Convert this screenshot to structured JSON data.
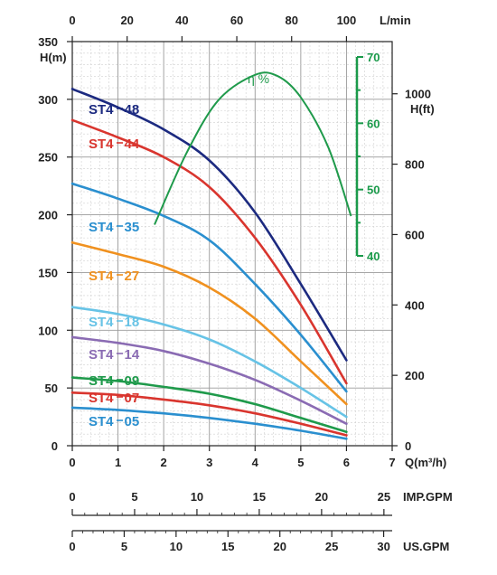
{
  "chart_data": {
    "type": "line",
    "title": "",
    "x_axis": {
      "label": "Q(m³/h)",
      "range": [
        0,
        7
      ],
      "ticks": [
        "0",
        "1",
        "2",
        "3",
        "4",
        "5",
        "6",
        "7"
      ]
    },
    "y_axis_left": {
      "label": "H(m)",
      "range": [
        0,
        350
      ],
      "ticks": [
        "0",
        "50",
        "100",
        "150",
        "200",
        "250",
        "300",
        "350"
      ]
    },
    "y_axis_right_ft": {
      "label": "H(ft)",
      "ticks": [
        "0",
        "200",
        "400",
        "600",
        "800",
        "1000"
      ],
      "values": [
        0,
        200,
        400,
        600,
        800,
        1000
      ]
    },
    "top_axis_lmin": {
      "label": "L/min",
      "ticks": [
        "0",
        "20",
        "40",
        "60",
        "80",
        "100"
      ],
      "values": [
        0,
        20,
        40,
        60,
        80,
        100
      ]
    },
    "efficiency_axis": {
      "label": "η %",
      "range": [
        40,
        70
      ],
      "ticks": [
        "40",
        "50",
        "60",
        "70"
      ],
      "values": [
        40,
        50,
        60,
        70
      ],
      "color": "#1a9a4a"
    },
    "imp_gpm_axis": {
      "label": "IMP.GPM",
      "ticks": [
        "0",
        "5",
        "10",
        "15",
        "20",
        "25"
      ],
      "values": [
        0,
        5,
        10,
        15,
        20,
        25
      ]
    },
    "us_gpm_axis": {
      "label": "US.GPM",
      "ticks": [
        "0",
        "5",
        "10",
        "15",
        "20",
        "25",
        "30"
      ],
      "values": [
        0,
        5,
        10,
        15,
        20,
        25,
        30
      ]
    },
    "grid": true,
    "series": [
      {
        "name": "ST4-48",
        "color": "#1c2a80",
        "x": [
          0,
          1,
          2,
          3,
          4,
          5,
          6
        ],
        "y": [
          309,
          293,
          274,
          247,
          202,
          140,
          74
        ]
      },
      {
        "name": "ST4-44",
        "color": "#d9352e",
        "x": [
          0,
          1,
          2,
          3,
          4,
          5,
          6
        ],
        "y": [
          282,
          267,
          250,
          224,
          180,
          122,
          54
        ]
      },
      {
        "name": "ST4-35",
        "color": "#2a8fcf",
        "x": [
          0,
          1,
          2,
          3,
          4,
          5,
          6
        ],
        "y": [
          227,
          214,
          199,
          178,
          140,
          96,
          47
        ]
      },
      {
        "name": "ST4-27",
        "color": "#f0911f",
        "x": [
          0,
          1,
          2,
          3,
          4,
          5,
          6
        ],
        "y": [
          176,
          166,
          155,
          137,
          110,
          73,
          36
        ]
      },
      {
        "name": "ST4-18",
        "color": "#67c3e6",
        "x": [
          0,
          1,
          2,
          3,
          4,
          5,
          6
        ],
        "y": [
          120,
          114,
          105,
          92,
          73,
          50,
          25
        ]
      },
      {
        "name": "ST4-14",
        "color": "#8a6bb3",
        "x": [
          0,
          1,
          2,
          3,
          4,
          5,
          6
        ],
        "y": [
          94,
          89,
          82,
          71,
          57,
          39,
          19
        ]
      },
      {
        "name": "ST4-09",
        "color": "#1f9a4b",
        "x": [
          0,
          1,
          2,
          3,
          4,
          5,
          6
        ],
        "y": [
          59,
          56,
          51,
          45,
          36,
          24,
          12
        ]
      },
      {
        "name": "ST4-07",
        "color": "#d9352e",
        "x": [
          0,
          1,
          2,
          3,
          4,
          5,
          6
        ],
        "y": [
          46,
          44,
          40,
          35,
          28,
          19,
          9
        ]
      },
      {
        "name": "ST4-05",
        "color": "#2a8fcf",
        "x": [
          0,
          1,
          2,
          3,
          4,
          5,
          6
        ],
        "y": [
          33,
          31,
          28,
          24,
          19,
          13,
          6
        ]
      }
    ],
    "efficiency": {
      "name": "η %",
      "color": "#1f9a4b",
      "x": [
        1.8,
        2.5,
        3.2,
        4.0,
        4.5,
        5.0,
        5.6,
        6.1
      ],
      "y": [
        44.7,
        55.5,
        63.5,
        67.3,
        67.1,
        63.9,
        56.4,
        46.0
      ]
    }
  }
}
